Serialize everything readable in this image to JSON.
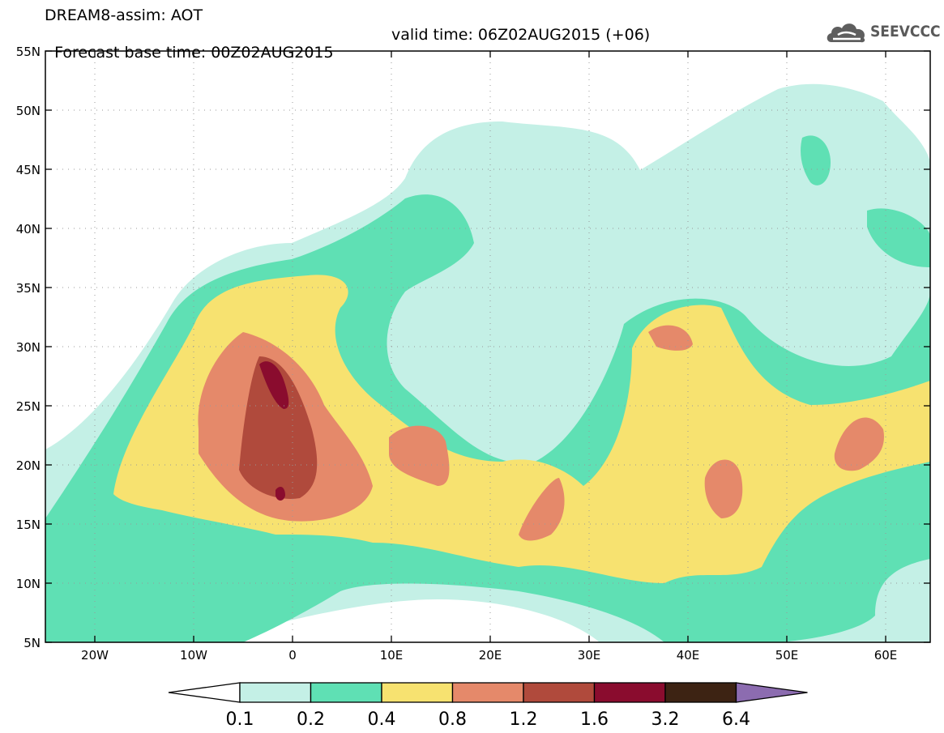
{
  "title": {
    "line1": "DREAM8-assim: AOT",
    "base_time": "Forecast base time: 00Z02AUG2015",
    "valid_time": "valid time: 06Z02AUG2015 (+06)"
  },
  "logo": {
    "text": "SEEVCCC",
    "icon": "cloud-icon"
  },
  "axes": {
    "lat_ticks": [
      "55N",
      "50N",
      "45N",
      "40N",
      "35N",
      "30N",
      "25N",
      "20N",
      "15N",
      "10N",
      "5N"
    ],
    "lon_ticks": [
      "20W",
      "10W",
      "0",
      "10E",
      "20E",
      "30E",
      "40E",
      "50E",
      "60E"
    ]
  },
  "colorbar": {
    "levels": [
      "0.1",
      "0.2",
      "0.4",
      "0.8",
      "1.2",
      "1.6",
      "3.2",
      "6.4"
    ],
    "colors": [
      "#ffffff",
      "#c4f0e6",
      "#5fe0b4",
      "#f7e270",
      "#e5896a",
      "#b04a3c",
      "#8a0c2e",
      "#3d2313",
      "#8c6cb0"
    ]
  }
}
